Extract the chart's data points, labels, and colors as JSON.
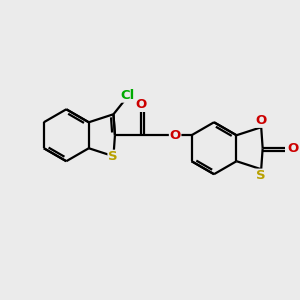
{
  "bg_color": "#ebebeb",
  "bond_color": "#000000",
  "bond_lw": 1.6,
  "S_color": "#b8a000",
  "O_color": "#cc0000",
  "Cl_color": "#00aa00",
  "font_size": 8.5,
  "fig_size": [
    3.0,
    3.0
  ],
  "dpi": 100,
  "xlim": [
    0,
    10
  ],
  "ylim": [
    0,
    10
  ]
}
